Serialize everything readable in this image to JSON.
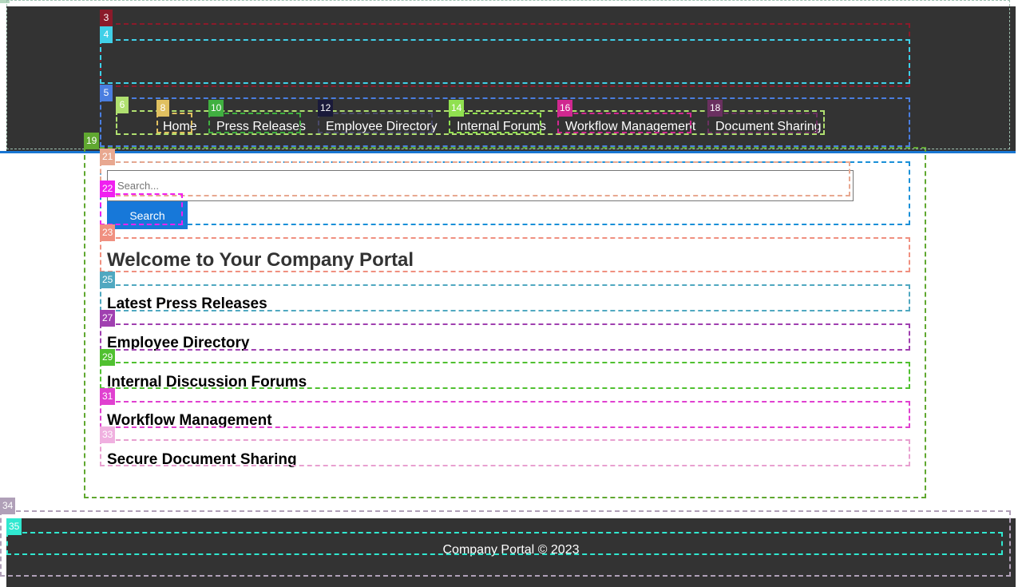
{
  "nav": {
    "items": [
      {
        "label": "Home"
      },
      {
        "label": "Press Releases"
      },
      {
        "label": "Employee Directory"
      },
      {
        "label": "Internal Forums"
      },
      {
        "label": "Workflow Management"
      },
      {
        "label": "Document Sharing"
      }
    ]
  },
  "search": {
    "placeholder": "Search...",
    "button_label": "Search"
  },
  "main": {
    "title": "Welcome to Your Company Portal",
    "sections": [
      {
        "title": "Latest Press Releases"
      },
      {
        "title": "Employee Directory"
      },
      {
        "title": "Internal Discussion Forums"
      },
      {
        "title": "Workflow Management"
      },
      {
        "title": "Secure Document Sharing"
      }
    ]
  },
  "footer": {
    "text": "Company Portal © 2023"
  },
  "colors": {
    "header_bg": "#333333",
    "accent": "#1778d9",
    "footer_bg": "#333333"
  },
  "marks": [
    "3",
    "4",
    "5",
    "6",
    "8",
    "10",
    "12",
    "14",
    "16",
    "18",
    "19",
    "21",
    "22",
    "23",
    "25",
    "27",
    "29",
    "31",
    "33",
    "34",
    "35"
  ]
}
